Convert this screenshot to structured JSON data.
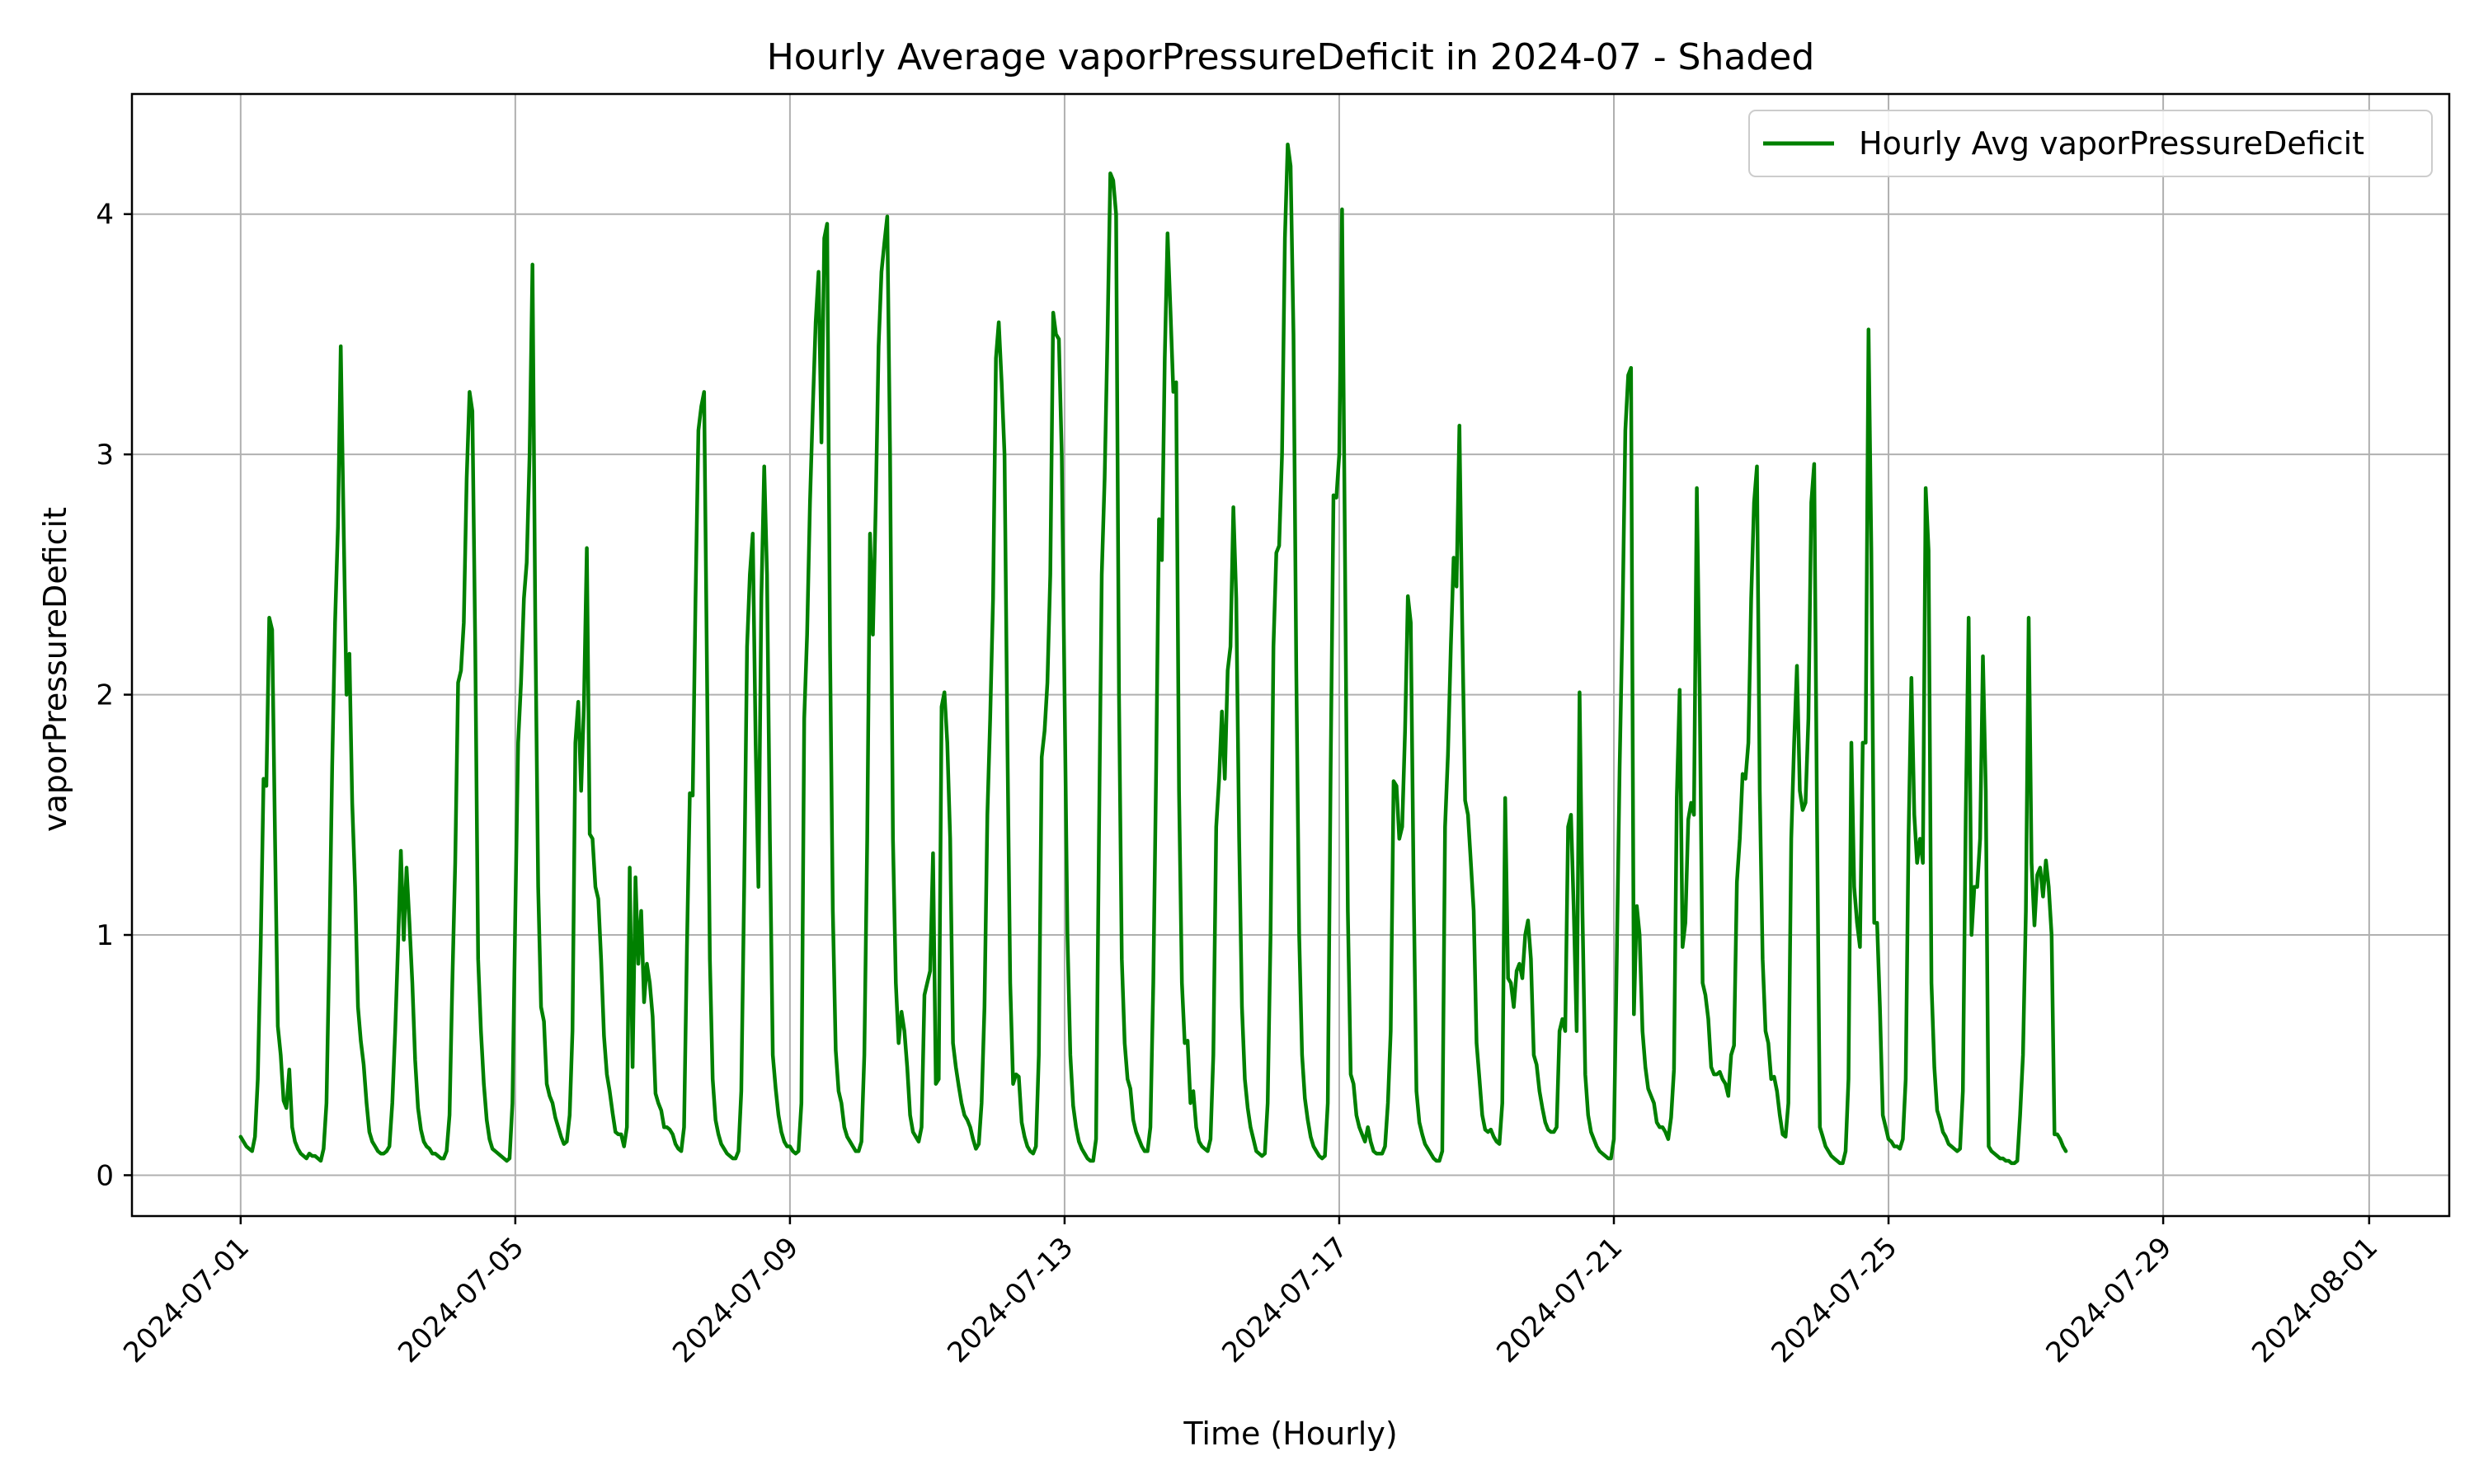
{
  "chart_data": {
    "type": "line",
    "title": "Hourly Average vaporPressureDeficit in 2024-07 - Shaded",
    "xlabel": "Time (Hourly)",
    "ylabel": "vaporPressureDeficit",
    "x_start": "2024-07-01T00:00",
    "x_step": "1 hour",
    "xlim": [
      "2024-06-29T10:00",
      "2024-08-02T04:00"
    ],
    "ylim": [
      -0.17,
      4.5
    ],
    "x_ticks": [
      "2024-07-01",
      "2024-07-05",
      "2024-07-09",
      "2024-07-13",
      "2024-07-17",
      "2024-07-21",
      "2024-07-25",
      "2024-07-29",
      "2024-08-01"
    ],
    "y_ticks": [
      0,
      1,
      2,
      3,
      4
    ],
    "y_tick_labels": [
      "0",
      "1",
      "2",
      "3",
      "4"
    ],
    "grid": true,
    "legend_position": "top-right",
    "colors": {
      "series": "#008000",
      "grid": "#b0b0b0"
    },
    "series": [
      {
        "name": "Hourly Avg vaporPressureDeficit",
        "color": "#008000",
        "values": [
          0.16,
          0.14,
          0.12,
          0.11,
          0.1,
          0.16,
          0.4,
          0.95,
          1.65,
          1.62,
          2.32,
          2.27,
          1.4,
          0.62,
          0.5,
          0.31,
          0.28,
          0.44,
          0.2,
          0.14,
          0.11,
          0.09,
          0.08,
          0.07,
          0.09,
          0.08,
          0.08,
          0.07,
          0.06,
          0.11,
          0.3,
          0.95,
          1.7,
          2.3,
          2.7,
          3.45,
          2.7,
          2.0,
          2.17,
          1.55,
          1.2,
          0.7,
          0.56,
          0.46,
          0.3,
          0.18,
          0.14,
          0.12,
          0.1,
          0.09,
          0.09,
          0.1,
          0.12,
          0.3,
          0.6,
          0.95,
          1.35,
          0.98,
          1.28,
          1.05,
          0.8,
          0.48,
          0.28,
          0.19,
          0.14,
          0.12,
          0.11,
          0.09,
          0.09,
          0.08,
          0.07,
          0.07,
          0.1,
          0.25,
          0.8,
          1.3,
          2.05,
          2.1,
          2.3,
          2.9,
          3.26,
          3.18,
          2.2,
          0.9,
          0.6,
          0.38,
          0.23,
          0.15,
          0.11,
          0.1,
          0.09,
          0.08,
          0.07,
          0.06,
          0.07,
          0.3,
          1.1,
          1.8,
          2.05,
          2.4,
          2.55,
          3.0,
          3.79,
          2.3,
          1.2,
          0.7,
          0.64,
          0.38,
          0.33,
          0.3,
          0.24,
          0.2,
          0.16,
          0.13,
          0.14,
          0.25,
          0.6,
          1.8,
          1.97,
          1.6,
          1.96,
          2.61,
          1.42,
          1.4,
          1.2,
          1.15,
          0.9,
          0.58,
          0.42,
          0.35,
          0.26,
          0.18,
          0.17,
          0.17,
          0.12,
          0.2,
          1.28,
          0.45,
          1.24,
          0.88,
          1.1,
          0.72,
          0.88,
          0.8,
          0.66,
          0.34,
          0.3,
          0.27,
          0.2,
          0.2,
          0.19,
          0.17,
          0.13,
          0.11,
          0.1,
          0.2,
          0.95,
          1.59,
          1.58,
          2.4,
          3.1,
          3.2,
          3.26,
          2.1,
          0.9,
          0.4,
          0.23,
          0.17,
          0.13,
          0.11,
          0.09,
          0.08,
          0.07,
          0.07,
          0.1,
          0.35,
          1.2,
          2.2,
          2.5,
          2.67,
          1.8,
          1.2,
          2.4,
          2.95,
          2.5,
          1.4,
          0.5,
          0.36,
          0.25,
          0.18,
          0.14,
          0.12,
          0.12,
          0.1,
          0.09,
          0.1,
          0.3,
          1.9,
          2.25,
          2.8,
          3.2,
          3.55,
          3.76,
          3.05,
          3.9,
          3.96,
          2.2,
          1.1,
          0.52,
          0.35,
          0.3,
          0.2,
          0.16,
          0.14,
          0.12,
          0.1,
          0.1,
          0.14,
          0.5,
          1.4,
          2.67,
          2.25,
          2.8,
          3.45,
          3.76,
          3.88,
          3.99,
          3.0,
          1.4,
          0.8,
          0.55,
          0.68,
          0.6,
          0.45,
          0.25,
          0.18,
          0.16,
          0.14,
          0.2,
          0.75,
          0.8,
          0.85,
          1.34,
          0.38,
          0.4,
          1.95,
          2.01,
          1.8,
          1.4,
          0.55,
          0.45,
          0.37,
          0.3,
          0.25,
          0.23,
          0.2,
          0.15,
          0.11,
          0.13,
          0.3,
          0.7,
          1.5,
          1.9,
          2.4,
          3.4,
          3.55,
          3.3,
          3.0,
          1.8,
          0.8,
          0.38,
          0.42,
          0.41,
          0.22,
          0.16,
          0.12,
          0.1,
          0.09,
          0.12,
          0.5,
          1.74,
          1.85,
          2.05,
          2.5,
          3.59,
          3.5,
          3.48,
          3.0,
          2.0,
          1.0,
          0.5,
          0.29,
          0.2,
          0.14,
          0.11,
          0.09,
          0.07,
          0.06,
          0.06,
          0.15,
          1.4,
          2.5,
          2.9,
          3.5,
          4.17,
          4.14,
          4.0,
          2.0,
          0.9,
          0.55,
          0.4,
          0.36,
          0.23,
          0.18,
          0.15,
          0.12,
          0.1,
          0.1,
          0.2,
          0.8,
          1.7,
          2.73,
          2.56,
          3.4,
          3.92,
          3.6,
          3.26,
          3.3,
          1.6,
          0.8,
          0.55,
          0.56,
          0.3,
          0.35,
          0.2,
          0.14,
          0.12,
          0.11,
          0.1,
          0.15,
          0.5,
          1.45,
          1.65,
          1.93,
          1.65,
          2.1,
          2.2,
          2.78,
          2.4,
          1.4,
          0.7,
          0.4,
          0.28,
          0.2,
          0.15,
          0.1,
          0.09,
          0.08,
          0.09,
          0.3,
          1.0,
          2.2,
          2.59,
          2.62,
          3.0,
          3.9,
          4.29,
          4.2,
          3.5,
          2.1,
          1.0,
          0.5,
          0.32,
          0.23,
          0.16,
          0.12,
          0.1,
          0.08,
          0.07,
          0.08,
          0.3,
          1.7,
          2.83,
          2.82,
          3.0,
          4.02,
          2.6,
          1.1,
          0.42,
          0.38,
          0.25,
          0.2,
          0.17,
          0.14,
          0.2,
          0.14,
          0.1,
          0.09,
          0.09,
          0.09,
          0.12,
          0.3,
          0.6,
          1.64,
          1.62,
          1.4,
          1.45,
          1.85,
          2.41,
          2.3,
          1.2,
          0.35,
          0.22,
          0.17,
          0.13,
          0.11,
          0.09,
          0.07,
          0.06,
          0.06,
          0.1,
          1.45,
          1.75,
          2.2,
          2.57,
          2.45,
          3.12,
          2.3,
          1.56,
          1.5,
          1.3,
          1.1,
          0.55,
          0.4,
          0.25,
          0.19,
          0.18,
          0.19,
          0.16,
          0.14,
          0.13,
          0.3,
          1.57,
          0.82,
          0.8,
          0.7,
          0.85,
          0.88,
          0.82,
          1.0,
          1.06,
          0.9,
          0.5,
          0.46,
          0.35,
          0.28,
          0.22,
          0.19,
          0.18,
          0.18,
          0.2,
          0.6,
          0.65,
          0.6,
          1.45,
          1.5,
          1.1,
          0.6,
          2.01,
          1.1,
          0.42,
          0.25,
          0.18,
          0.15,
          0.12,
          0.1,
          0.09,
          0.08,
          0.07,
          0.07,
          0.15,
          0.9,
          1.7,
          2.3,
          3.1,
          3.33,
          3.36,
          0.67,
          1.12,
          1.0,
          0.6,
          0.45,
          0.36,
          0.33,
          0.3,
          0.22,
          0.2,
          0.2,
          0.18,
          0.15,
          0.24,
          0.44,
          1.57,
          2.02,
          0.95,
          1.05,
          1.48,
          1.55,
          1.5,
          2.86,
          2.0,
          0.8,
          0.75,
          0.65,
          0.45,
          0.42,
          0.42,
          0.43,
          0.4,
          0.38,
          0.33,
          0.5,
          0.54,
          1.22,
          1.4,
          1.67,
          1.65,
          1.8,
          2.4,
          2.8,
          2.95,
          1.6,
          0.9,
          0.6,
          0.55,
          0.4,
          0.41,
          0.35,
          0.25,
          0.17,
          0.16,
          0.3,
          1.4,
          1.8,
          2.12,
          1.6,
          1.52,
          1.55,
          1.9,
          2.8,
          2.96,
          1.5,
          0.2,
          0.16,
          0.12,
          0.1,
          0.08,
          0.07,
          0.06,
          0.05,
          0.05,
          0.1,
          0.4,
          1.8,
          1.2,
          1.05,
          0.95,
          1.8,
          1.8,
          3.52,
          2.6,
          1.05,
          1.05,
          0.7,
          0.25,
          0.2,
          0.15,
          0.14,
          0.12,
          0.12,
          0.11,
          0.15,
          0.4,
          1.4,
          2.07,
          1.5,
          1.3,
          1.4,
          1.3,
          2.86,
          2.6,
          0.8,
          0.45,
          0.27,
          0.23,
          0.18,
          0.16,
          0.13,
          0.12,
          0.11,
          0.1,
          0.11,
          0.35,
          1.5,
          2.32,
          1.0,
          1.2,
          1.2,
          1.4,
          2.16,
          1.6,
          0.12,
          0.1,
          0.09,
          0.08,
          0.07,
          0.07,
          0.06,
          0.06,
          0.05,
          0.05,
          0.06,
          0.25,
          0.5,
          1.1,
          2.32,
          1.3,
          1.04,
          1.25,
          1.28,
          1.16,
          1.31,
          1.2,
          1.0,
          0.17,
          0.17,
          0.15,
          0.12,
          0.1
        ]
      }
    ]
  }
}
